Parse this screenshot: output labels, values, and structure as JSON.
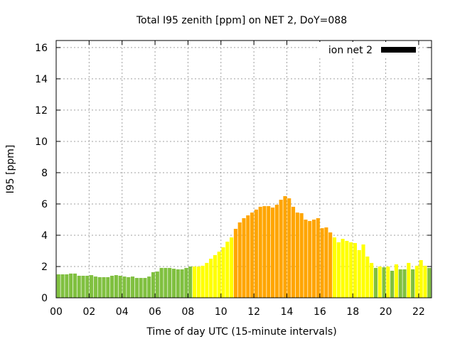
{
  "chart_data": {
    "type": "bar",
    "title": "Total I95 zenith [ppm] on NET 2, DoY=088",
    "xlabel": "Time of day UTC (15-minute intervals)",
    "ylabel": "I95 [ppm]",
    "xlim": [
      0,
      22.78
    ],
    "ylim": [
      0,
      16.45
    ],
    "xticks": [
      "00",
      "02",
      "04",
      "06",
      "08",
      "10",
      "12",
      "14",
      "16",
      "18",
      "20",
      "22"
    ],
    "xtick_values": [
      0,
      2,
      4,
      6,
      8,
      10,
      12,
      14,
      16,
      18,
      20,
      22
    ],
    "yticks": [
      "0",
      "2",
      "4",
      "6",
      "8",
      "10",
      "12",
      "14",
      "16"
    ],
    "ytick_values": [
      0,
      2,
      4,
      6,
      8,
      10,
      12,
      14,
      16
    ],
    "grid": true,
    "legend": {
      "label": "ion net 2",
      "placement": "top-right",
      "color": "#000000"
    },
    "bar_interval_hours": 0.25,
    "palette": {
      "g": "#80c040",
      "y": "#ffff00",
      "o": "#ffa500"
    },
    "values": [
      1.5,
      1.5,
      1.5,
      1.55,
      1.55,
      1.41,
      1.41,
      1.41,
      1.45,
      1.36,
      1.32,
      1.32,
      1.32,
      1.41,
      1.45,
      1.41,
      1.36,
      1.32,
      1.36,
      1.27,
      1.27,
      1.27,
      1.36,
      1.64,
      1.68,
      1.91,
      1.91,
      1.91,
      1.86,
      1.82,
      1.82,
      1.91,
      2.0,
      2.0,
      2.0,
      2.05,
      2.23,
      2.5,
      2.73,
      2.95,
      3.23,
      3.59,
      3.86,
      4.41,
      4.82,
      5.09,
      5.27,
      5.45,
      5.64,
      5.82,
      5.86,
      5.86,
      5.77,
      5.95,
      6.27,
      6.5,
      6.36,
      5.82,
      5.45,
      5.41,
      5.0,
      4.91,
      5.0,
      5.09,
      4.45,
      4.5,
      4.18,
      3.86,
      3.55,
      3.77,
      3.64,
      3.55,
      3.5,
      3.05,
      3.41,
      2.64,
      2.23,
      1.91,
      2.0,
      1.95,
      2.0,
      1.73,
      2.14,
      1.82,
      1.82,
      2.23,
      1.82,
      2.05,
      2.41,
      2.05,
      1.91,
      2.09
    ],
    "colors": "gggggggggggggggggggggggggggggggggyyyyyyyyyyooooooooooooooooooooooooyyyyyyyyyygygygyggygyyyggy"
  }
}
